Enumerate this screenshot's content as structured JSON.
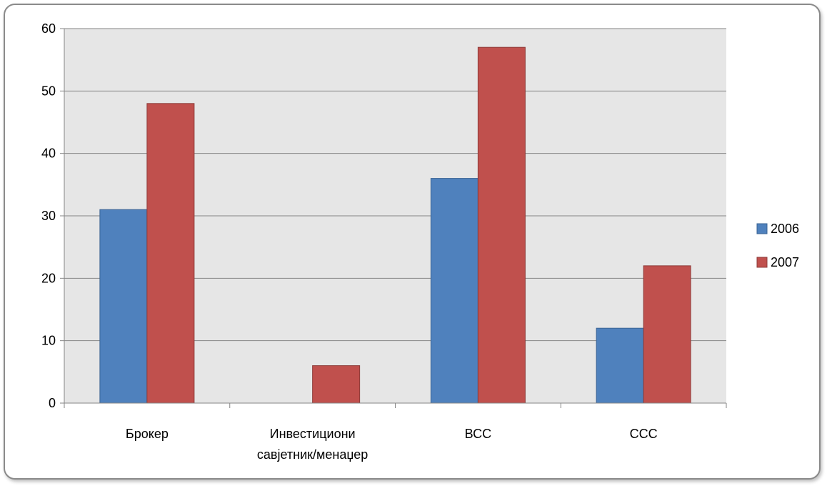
{
  "chart_data": {
    "type": "bar",
    "categories": [
      [
        "Брокер"
      ],
      [
        "Инвестициони",
        "савјетник/менаџер"
      ],
      [
        "ВСС"
      ],
      [
        "ССС"
      ]
    ],
    "series": [
      {
        "name": "2006",
        "values": [
          31,
          0,
          36,
          12
        ],
        "color": "#4F81BD"
      },
      {
        "name": "2007",
        "values": [
          48,
          6,
          57,
          22
        ],
        "color": "#C0504D"
      }
    ],
    "ylim": [
      0,
      60
    ],
    "yticks": [
      0,
      10,
      20,
      30,
      40,
      50,
      60
    ],
    "grid": true,
    "plot_background": "#E6E6E6",
    "legend_position": "right"
  }
}
